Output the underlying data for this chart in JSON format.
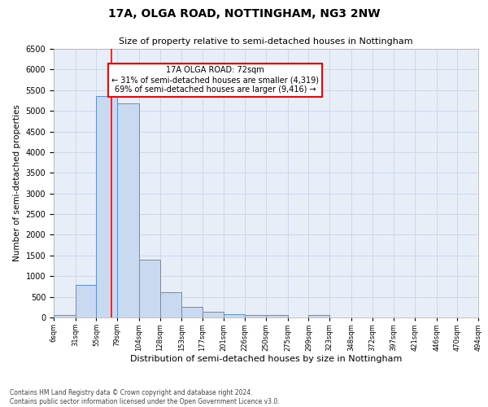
{
  "title": "17A, OLGA ROAD, NOTTINGHAM, NG3 2NW",
  "subtitle": "Size of property relative to semi-detached houses in Nottingham",
  "xlabel": "Distribution of semi-detached houses by size in Nottingham",
  "ylabel": "Number of semi-detached properties",
  "footer_line1": "Contains HM Land Registry data © Crown copyright and database right 2024.",
  "footer_line2": "Contains public sector information licensed under the Open Government Licence v3.0.",
  "property_label": "17A OLGA ROAD: 72sqm",
  "annotation_line1": "← 31% of semi-detached houses are smaller (4,319)",
  "annotation_line2": "69% of semi-detached houses are larger (9,416) →",
  "property_size": 72,
  "bar_edges": [
    6,
    31,
    55,
    79,
    104,
    128,
    153,
    177,
    201,
    226,
    250,
    275,
    299,
    323,
    348,
    372,
    397,
    421,
    446,
    470,
    494
  ],
  "bar_heights": [
    65,
    780,
    5350,
    5180,
    1400,
    620,
    250,
    130,
    80,
    60,
    55,
    0,
    65,
    0,
    0,
    0,
    0,
    0,
    0,
    0
  ],
  "bar_color": "#c9d9f0",
  "bar_edge_color": "#5b8fd4",
  "red_line_x": 72,
  "ylim": [
    0,
    6500
  ],
  "yticks": [
    0,
    500,
    1000,
    1500,
    2000,
    2500,
    3000,
    3500,
    4000,
    4500,
    5000,
    5500,
    6000,
    6500
  ],
  "annotation_box_color": "white",
  "annotation_box_edge_color": "red",
  "grid_color": "#c8d4e8",
  "bg_color": "#e8eef8",
  "title_fontsize": 10,
  "subtitle_fontsize": 8,
  "ylabel_fontsize": 7.5,
  "xlabel_fontsize": 8,
  "ytick_fontsize": 7,
  "xtick_fontsize": 6,
  "footer_fontsize": 5.5,
  "annot_fontsize": 7
}
